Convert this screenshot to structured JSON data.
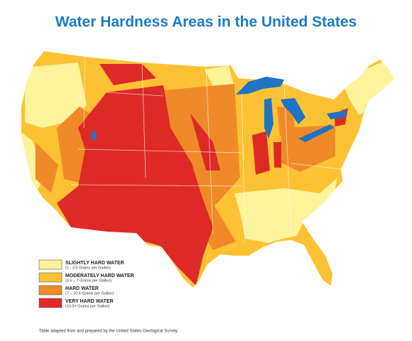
{
  "title": "Water Hardness Areas in the United States",
  "legend": [
    {
      "label": "SLIGHTLY HARD WATER",
      "detail": "(1 - 3.5 Grains per Gallon)",
      "color": "#fff39b"
    },
    {
      "label": "MODERATELY HARD WATER",
      "detail": "(3.5 – 7 Grains per Gallon)",
      "color": "#fdc234"
    },
    {
      "label": "HARD WATER",
      "detail": "(7 – 10.5 Grains per Gallon)",
      "color": "#f08a28"
    },
    {
      "label": "VERY HARD WATER",
      "detail": "(10.5+ Grains per Gallon)",
      "color": "#de2a27"
    }
  ],
  "note": "Table adapted from and prepared by the United States Geological Survey."
}
